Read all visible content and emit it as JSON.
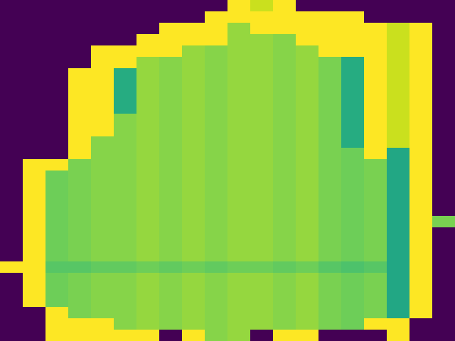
{
  "chart_data": {
    "type": "heatmap",
    "tick_labels": false,
    "color_range": [
      0,
      100
    ],
    "cells": [
      [
        0,
        0,
        0,
        0,
        0,
        0,
        0,
        0,
        0,
        0,
        100,
        92,
        100,
        0,
        0,
        0,
        0,
        0,
        0,
        0
      ],
      [
        0,
        0,
        0,
        0,
        0,
        0,
        0,
        0,
        0,
        100,
        100,
        100,
        100,
        100,
        100,
        100,
        0,
        0,
        0,
        0
      ],
      [
        0,
        0,
        0,
        0,
        0,
        0,
        0,
        100,
        100,
        100,
        84,
        100,
        100,
        100,
        100,
        100,
        100,
        92,
        100,
        0
      ],
      [
        0,
        0,
        0,
        0,
        0,
        0,
        100,
        100,
        100,
        100,
        84,
        84,
        82,
        100,
        100,
        100,
        100,
        92,
        100,
        0
      ],
      [
        0,
        0,
        0,
        0,
        100,
        100,
        100,
        100,
        84,
        82,
        84,
        84,
        82,
        84,
        100,
        100,
        100,
        92,
        100,
        0
      ],
      [
        0,
        0,
        0,
        0,
        100,
        100,
        84,
        82,
        84,
        82,
        84,
        84,
        82,
        84,
        80,
        62,
        100,
        92,
        100,
        0
      ],
      [
        0,
        0,
        0,
        100,
        100,
        62,
        84,
        82,
        84,
        82,
        84,
        84,
        82,
        84,
        80,
        62,
        100,
        92,
        100,
        0
      ],
      [
        0,
        0,
        0,
        100,
        100,
        62,
        84,
        82,
        84,
        82,
        84,
        84,
        82,
        84,
        80,
        62,
        100,
        92,
        100,
        0
      ],
      [
        0,
        0,
        0,
        100,
        100,
        62,
        84,
        82,
        84,
        82,
        84,
        84,
        82,
        84,
        80,
        62,
        100,
        92,
        100,
        0
      ],
      [
        0,
        0,
        0,
        100,
        100,
        62,
        84,
        82,
        84,
        82,
        84,
        84,
        82,
        84,
        80,
        62,
        100,
        92,
        100,
        0
      ],
      [
        0,
        0,
        0,
        100,
        100,
        82,
        84,
        82,
        84,
        82,
        84,
        84,
        82,
        84,
        80,
        62,
        100,
        92,
        100,
        0
      ],
      [
        0,
        0,
        0,
        100,
        100,
        82,
        84,
        82,
        84,
        82,
        84,
        84,
        82,
        84,
        80,
        62,
        100,
        92,
        100,
        0
      ],
      [
        0,
        0,
        0,
        100,
        82,
        82,
        84,
        82,
        84,
        82,
        84,
        84,
        82,
        84,
        80,
        62,
        100,
        92,
        100,
        0
      ],
      [
        0,
        0,
        0,
        100,
        82,
        82,
        84,
        82,
        84,
        82,
        84,
        84,
        82,
        84,
        80,
        78,
        100,
        60,
        100,
        0
      ],
      [
        0,
        100,
        100,
        80,
        82,
        82,
        84,
        82,
        84,
        82,
        84,
        84,
        82,
        84,
        80,
        78,
        80,
        60,
        100,
        0
      ],
      [
        0,
        100,
        78,
        80,
        82,
        82,
        84,
        82,
        84,
        82,
        84,
        84,
        82,
        84,
        80,
        78,
        80,
        60,
        100,
        0
      ],
      [
        0,
        100,
        78,
        80,
        82,
        82,
        84,
        82,
        84,
        82,
        84,
        84,
        82,
        84,
        80,
        78,
        80,
        60,
        100,
        0
      ],
      [
        0,
        100,
        78,
        80,
        82,
        82,
        84,
        82,
        84,
        82,
        84,
        84,
        82,
        84,
        80,
        78,
        80,
        60,
        100,
        0
      ],
      [
        0,
        100,
        78,
        80,
        82,
        82,
        84,
        82,
        84,
        82,
        84,
        84,
        82,
        84,
        80,
        78,
        80,
        60,
        100,
        0
      ],
      [
        0,
        100,
        78,
        80,
        82,
        82,
        84,
        82,
        84,
        82,
        84,
        84,
        82,
        84,
        80,
        78,
        80,
        60,
        100,
        80
      ],
      [
        0,
        100,
        78,
        80,
        82,
        82,
        84,
        82,
        84,
        82,
        84,
        84,
        82,
        84,
        80,
        78,
        80,
        60,
        100,
        0
      ],
      [
        0,
        100,
        78,
        80,
        82,
        82,
        84,
        82,
        84,
        82,
        84,
        84,
        82,
        84,
        80,
        78,
        80,
        60,
        100,
        0
      ],
      [
        0,
        100,
        78,
        80,
        82,
        82,
        84,
        82,
        84,
        82,
        84,
        84,
        82,
        84,
        80,
        78,
        80,
        60,
        100,
        0
      ],
      [
        100,
        100,
        74,
        74,
        76,
        76,
        78,
        76,
        78,
        76,
        78,
        78,
        76,
        78,
        74,
        72,
        74,
        60,
        100,
        0
      ],
      [
        0,
        100,
        78,
        80,
        82,
        82,
        84,
        82,
        84,
        82,
        84,
        84,
        82,
        84,
        80,
        78,
        80,
        60,
        100,
        0
      ],
      [
        0,
        100,
        78,
        80,
        82,
        82,
        84,
        82,
        84,
        82,
        84,
        84,
        82,
        84,
        80,
        78,
        80,
        60,
        100,
        0
      ],
      [
        0,
        100,
        78,
        80,
        82,
        82,
        84,
        82,
        84,
        82,
        84,
        84,
        82,
        84,
        80,
        78,
        80,
        60,
        100,
        0
      ],
      [
        0,
        0,
        100,
        80,
        82,
        82,
        84,
        82,
        84,
        82,
        84,
        84,
        82,
        84,
        80,
        78,
        80,
        60,
        100,
        0
      ],
      [
        0,
        0,
        100,
        100,
        100,
        82,
        84,
        82,
        84,
        82,
        84,
        84,
        82,
        84,
        80,
        78,
        100,
        100,
        0,
        0
      ],
      [
        0,
        0,
        100,
        100,
        100,
        100,
        100,
        0,
        100,
        82,
        84,
        0,
        100,
        100,
        0,
        0,
        0,
        100,
        0,
        0
      ]
    ]
  }
}
